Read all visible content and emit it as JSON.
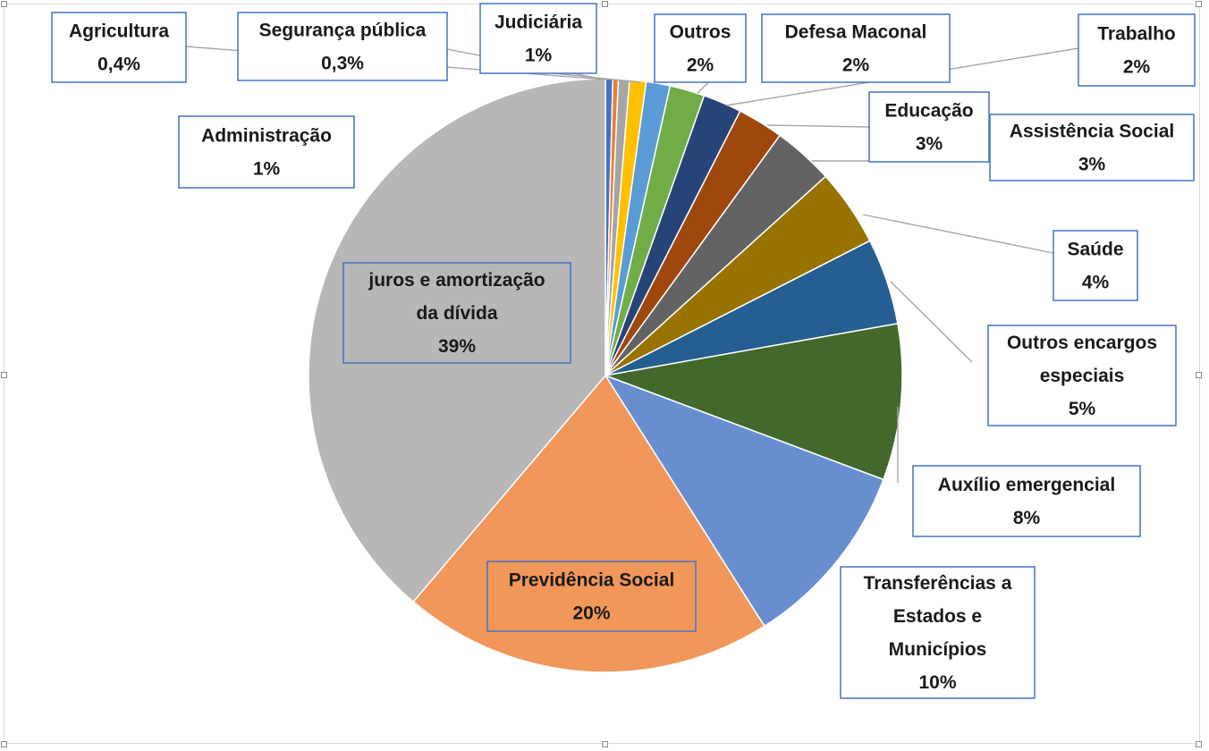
{
  "chart_data": {
    "type": "pie",
    "title": "",
    "start_angle_deg": 0,
    "direction": "clockwise",
    "slices": [
      {
        "label": [
          "Agricultura"
        ],
        "pct_text": "0,4%",
        "value": 0.4,
        "color": "#4472c4"
      },
      {
        "label": [
          "Segurança pública"
        ],
        "pct_text": "0,3%",
        "value": 0.3,
        "color": "#ed7d31"
      },
      {
        "label": [
          "Administração"
        ],
        "pct_text": "1%",
        "value": 0.6,
        "color": "#a5a5a5"
      },
      {
        "label": [
          "Judiciária"
        ],
        "pct_text": "1%",
        "value": 0.9,
        "color": "#ffc000"
      },
      {
        "label": [
          "Outros"
        ],
        "pct_text": "2%",
        "value": 1.3,
        "color": "#5b9bd5"
      },
      {
        "label": [
          "Defesa Maconal"
        ],
        "pct_text": "2%",
        "value": 1.9,
        "color": "#70ad47"
      },
      {
        "label": [
          "Trabalho"
        ],
        "pct_text": "2%",
        "value": 2.1,
        "color": "#264478"
      },
      {
        "label": [
          "Educação"
        ],
        "pct_text": "3%",
        "value": 2.5,
        "color": "#9e480e"
      },
      {
        "label": [
          "Assistência Social"
        ],
        "pct_text": "3%",
        "value": 3.3,
        "color": "#636363"
      },
      {
        "label": [
          "Saúde"
        ],
        "pct_text": "4%",
        "value": 4.2,
        "color": "#997300"
      },
      {
        "label": [
          "Outros encargos",
          "especiais"
        ],
        "pct_text": "5%",
        "value": 4.7,
        "color": "#255e91"
      },
      {
        "label": [
          "Auxílio emergencial"
        ],
        "pct_text": "8%",
        "value": 8.5,
        "color": "#43682b"
      },
      {
        "label": [
          "Transferências a",
          "Estados e",
          "Municípios"
        ],
        "pct_text": "10%",
        "value": 10.3,
        "color": "#698ed0"
      },
      {
        "label": [
          "Previdência Social"
        ],
        "pct_text": "20%",
        "value": 20.2,
        "color": "#f1975a"
      },
      {
        "label": [
          "juros e amortização",
          "da dívida"
        ],
        "pct_text": "39%",
        "value": 38.8,
        "color": "#b7b7b7"
      }
    ]
  }
}
